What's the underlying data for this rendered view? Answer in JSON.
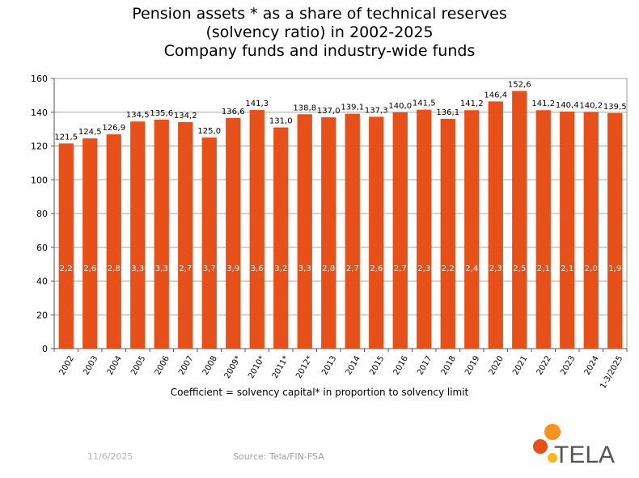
{
  "chart_data": {
    "type": "bar",
    "title_lines": [
      "Pension assets * as a share of technical reserves",
      "(solvency ratio) in 2002-2025",
      "Company funds and industry-wide funds"
    ],
    "categories": [
      "2002",
      "2003",
      "2004",
      "2005",
      "2006",
      "2007",
      "2008",
      "2009*",
      "2010*",
      "2011*",
      "2012*",
      "2013",
      "2014",
      "2015",
      "2016",
      "2017",
      "2018",
      "2019",
      "2020",
      "2021",
      "2022",
      "2023",
      "2024",
      "1-3/2025"
    ],
    "values": [
      121.5,
      124.5,
      126.9,
      134.5,
      135.6,
      134.2,
      125.0,
      136.6,
      141.3,
      131.0,
      138.8,
      137.0,
      139.1,
      137.3,
      140.0,
      141.5,
      136.1,
      141.2,
      146.4,
      152.6,
      141.2,
      140.4,
      140.2,
      139.5
    ],
    "value_labels": [
      "121,5",
      "124,5",
      "126,9",
      "134,5",
      "135,6",
      "134,2",
      "125,0",
      "136,6",
      "141,3",
      "131,0",
      "138,8",
      "137,0",
      "139,1",
      "137,3",
      "140,0",
      "141,5",
      "136,1",
      "141,2",
      "146,4",
      "152,6",
      "141,2",
      "140,4",
      "140,2",
      "139,5"
    ],
    "coefficient_labels": [
      "2,2",
      "2,6",
      "2,8",
      "3,3",
      "3,3",
      "2,7",
      "3,7",
      "3,9",
      "3,6",
      "3,2",
      "3,3",
      "2,8",
      "2,7",
      "2,6",
      "2,7",
      "2,3",
      "2,2",
      "2,4",
      "2,3",
      "2,5",
      "2,1",
      "2,1",
      "2,0",
      "1,9"
    ],
    "ylim": [
      0,
      160
    ],
    "yticks": [
      0,
      20,
      40,
      60,
      80,
      100,
      120,
      140,
      160
    ],
    "grid": true,
    "bar_color": "#e8501a"
  },
  "coefficient_note": "Coefficient = solvency capital* in proportion to solvency limit",
  "footer": {
    "date": "11/6/2025",
    "source": "Source: Tela/FIN-FSA"
  },
  "logo": {
    "text": "TELA",
    "colors": [
      "#f7941d",
      "#e8501a",
      "#fdb913"
    ]
  }
}
